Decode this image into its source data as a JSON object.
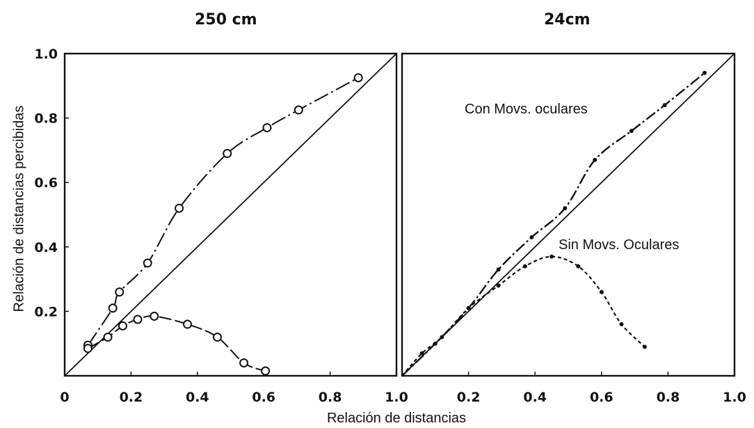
{
  "figure": {
    "ylabel": "Relación de distancias percibidas",
    "xlabel": "Relación de distancias"
  },
  "chart_data": [
    {
      "type": "line",
      "title": "250 cm",
      "xlabel": "Relación de distancias",
      "ylabel": "Relación de distancias percibidas",
      "xlim": [
        0,
        1.0
      ],
      "ylim": [
        0,
        1.0
      ],
      "x_ticks": [
        "0",
        "0.2",
        "0.4",
        "0.6",
        "0.8",
        "1.0"
      ],
      "y_ticks": [
        "0.2",
        "0.4",
        "0.6",
        "0.8",
        "1.0"
      ],
      "series": [
        {
          "x": [
            0,
            1.0
          ],
          "y": [
            0,
            1.0
          ]
        },
        {
          "x": [
            0.07,
            0.145,
            0.165,
            0.25,
            0.345,
            0.49,
            0.61,
            0.705,
            0.885
          ],
          "y": [
            0.095,
            0.21,
            0.26,
            0.35,
            0.52,
            0.69,
            0.77,
            0.825,
            0.925
          ]
        },
        {
          "x": [
            0.07,
            0.13,
            0.175,
            0.22,
            0.27,
            0.37,
            0.46,
            0.54,
            0.605
          ],
          "y": [
            0.085,
            0.12,
            0.155,
            0.175,
            0.185,
            0.16,
            0.12,
            0.04,
            0.015
          ]
        }
      ]
    },
    {
      "type": "line",
      "title": "24cm",
      "xlim": [
        0,
        1.0
      ],
      "ylim": [
        0,
        1.0
      ],
      "x_ticks": [
        "0.2",
        "0.4",
        "0.6",
        "0.8",
        "1.0"
      ],
      "series": [
        {
          "x": [
            0,
            1.0
          ],
          "y": [
            0,
            1.0
          ]
        },
        {
          "name": "Con Movs. oculares",
          "x": [
            0.0,
            0.1,
            0.2,
            0.29,
            0.39,
            0.49,
            0.58,
            0.69,
            0.79,
            0.91
          ],
          "y": [
            0.0,
            0.1,
            0.21,
            0.33,
            0.43,
            0.52,
            0.67,
            0.76,
            0.84,
            0.94
          ]
        },
        {
          "name": "Sin Movs. Oculares",
          "x": [
            0.0,
            0.06,
            0.12,
            0.2,
            0.29,
            0.37,
            0.45,
            0.53,
            0.6,
            0.66,
            0.73
          ],
          "y": [
            0.0,
            0.07,
            0.12,
            0.21,
            0.28,
            0.34,
            0.37,
            0.34,
            0.26,
            0.16,
            0.09
          ]
        }
      ]
    }
  ],
  "annotations": {
    "con": "Con Movs. oculares",
    "sin": "Sin Movs. Oculares"
  }
}
